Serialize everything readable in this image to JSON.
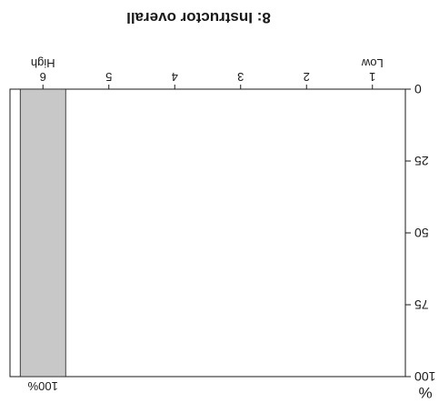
{
  "chart_data": {
    "type": "bar",
    "orientation": "rotated-180",
    "title": "8: Instructor overall",
    "categories": [
      "1",
      "2",
      "3",
      "4",
      "5",
      "6"
    ],
    "category_labels": {
      "low": "Low",
      "high": "High"
    },
    "values": [
      0,
      0,
      0,
      0,
      0,
      100
    ],
    "data_labels": [
      "",
      "",
      "",
      "",
      "",
      "100%"
    ],
    "ylabel": "%",
    "ylim": [
      0,
      100
    ],
    "yticks": [
      "0",
      "25",
      "50",
      "75",
      "100"
    ],
    "grid": false,
    "colors": {
      "bar": "#c8c8c8",
      "axis": "#1a1a1a"
    }
  }
}
